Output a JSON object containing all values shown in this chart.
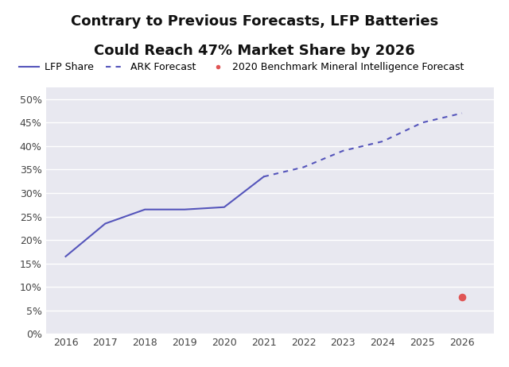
{
  "title_line1": "Contrary to Previous Forecasts, LFP Batteries",
  "title_line2": "Could Reach 47% Market Share by 2026",
  "fig_bg_color": "#ffffff",
  "plot_bg_color": "#e8e8f0",
  "line_color": "#5555bb",
  "lfp_x": [
    2016,
    2017,
    2018,
    2019,
    2020,
    2021
  ],
  "lfp_y": [
    0.165,
    0.235,
    0.265,
    0.265,
    0.27,
    0.335
  ],
  "ark_x": [
    2021,
    2022,
    2023,
    2024,
    2025,
    2026
  ],
  "ark_y": [
    0.335,
    0.355,
    0.39,
    0.41,
    0.45,
    0.47
  ],
  "benchmark_x": [
    2026
  ],
  "benchmark_y": [
    0.078
  ],
  "benchmark_color": "#e05555",
  "ylim": [
    0,
    0.525
  ],
  "yticks": [
    0.0,
    0.05,
    0.1,
    0.15,
    0.2,
    0.25,
    0.3,
    0.35,
    0.4,
    0.45,
    0.5
  ],
  "xlim": [
    2015.5,
    2026.8
  ],
  "xticks": [
    2016,
    2017,
    2018,
    2019,
    2020,
    2021,
    2022,
    2023,
    2024,
    2025,
    2026
  ],
  "legend_lfp": "LFP Share",
  "legend_ark": "ARK Forecast",
  "legend_benchmark": "2020 Benchmark Mineral Intelligence Forecast",
  "title_fontsize": 13,
  "tick_fontsize": 9,
  "legend_fontsize": 9
}
